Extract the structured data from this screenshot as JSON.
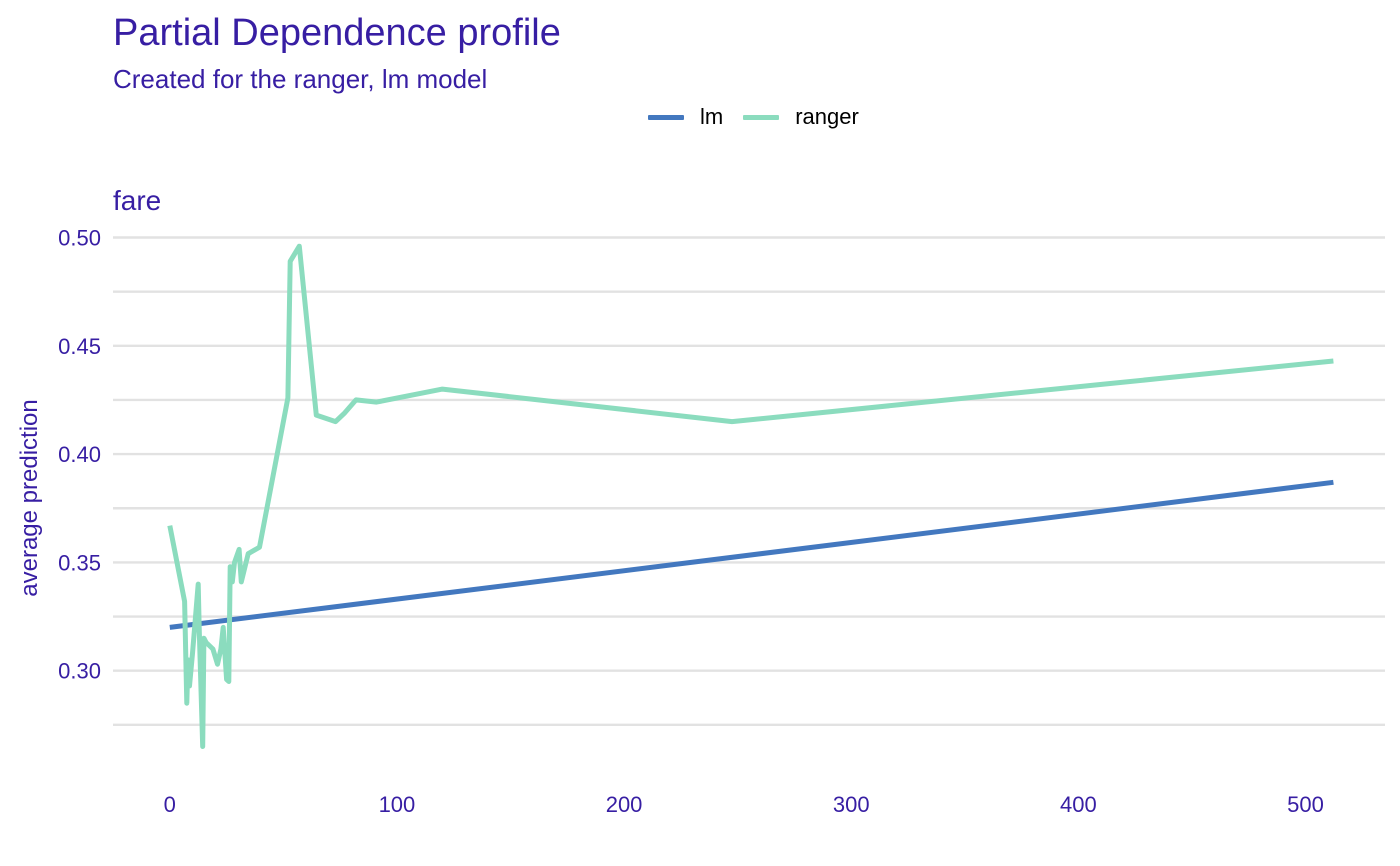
{
  "chart_data": {
    "type": "line",
    "title": "Partial Dependence profile",
    "subtitle": "Created for the ranger, lm model",
    "panel_title": "fare",
    "xlabel": "",
    "ylabel": "average prediction",
    "xlim": [
      -25,
      535
    ],
    "ylim": [
      0.262,
      0.509
    ],
    "x_ticks": [
      0,
      100,
      200,
      300,
      400,
      500
    ],
    "y_ticks": [
      0.3,
      0.35,
      0.4,
      0.45,
      0.5
    ],
    "y_tick_labels": [
      "0.30",
      "0.35",
      "0.40",
      "0.45",
      "0.50"
    ],
    "grid": true,
    "legend_position": "top",
    "series": [
      {
        "name": "lm",
        "color": "#4378bf",
        "x": [
          0,
          512.3
        ],
        "y": [
          0.32,
          0.387
        ]
      },
      {
        "name": "ranger",
        "color": "#8bdcbe",
        "x": [
          0,
          6.5,
          7.5,
          8.0,
          8.7,
          10.0,
          12.5,
          13.0,
          14.5,
          15.0,
          16.0,
          19.0,
          21.0,
          22.5,
          23.5,
          25.0,
          26.0,
          26.6,
          27.5,
          28.5,
          30.5,
          31.5,
          34.5,
          39.5,
          52.0,
          53.0,
          57.0,
          64.5,
          73.0,
          77.0,
          82.0,
          91.0,
          120.0,
          247.5,
          512.3
        ],
        "y": [
          0.367,
          0.332,
          0.285,
          0.305,
          0.293,
          0.308,
          0.34,
          0.318,
          0.265,
          0.315,
          0.313,
          0.31,
          0.303,
          0.31,
          0.32,
          0.296,
          0.295,
          0.348,
          0.341,
          0.35,
          0.356,
          0.341,
          0.354,
          0.357,
          0.426,
          0.489,
          0.496,
          0.418,
          0.415,
          0.419,
          0.425,
          0.424,
          0.43,
          0.415,
          0.443
        ]
      }
    ]
  }
}
